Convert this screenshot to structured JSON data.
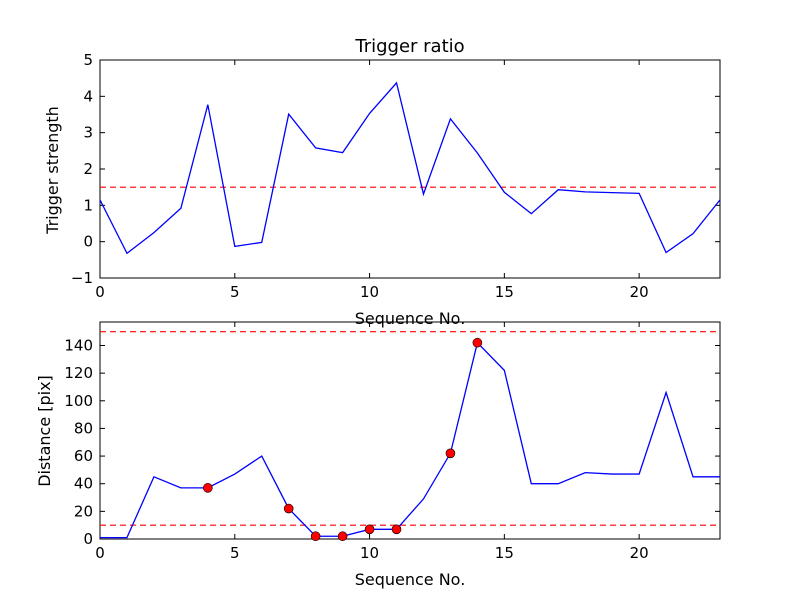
{
  "chart_data": [
    {
      "type": "line",
      "title": "Trigger ratio",
      "xlabel": "Sequence No.",
      "ylabel": "Trigger strength",
      "xlim": [
        0,
        23
      ],
      "ylim": [
        -1,
        5
      ],
      "xticks": [
        0,
        5,
        10,
        15,
        20
      ],
      "yticks": [
        -1,
        0,
        1,
        2,
        3,
        4,
        5
      ],
      "x": [
        0,
        1,
        2,
        3,
        4,
        5,
        6,
        7,
        8,
        9,
        10,
        11,
        12,
        13,
        14,
        15,
        16,
        17,
        18,
        19,
        20,
        21,
        22,
        23
      ],
      "series": [
        {
          "color": "#0000ff",
          "values": [
            1.15,
            -0.32,
            0.25,
            0.92,
            3.77,
            -0.13,
            -0.02,
            3.51,
            2.58,
            2.45,
            3.53,
            4.37,
            1.31,
            3.38,
            2.44,
            1.36,
            0.77,
            1.43,
            1.37,
            1.35,
            1.33,
            -0.3,
            0.22,
            1.15
          ]
        }
      ],
      "threshold_lines": [
        {
          "y": 1.5,
          "color": "#ff0000",
          "style": "dashed"
        }
      ],
      "grid": false
    },
    {
      "type": "line",
      "title": "",
      "xlabel": "Sequence No.",
      "ylabel": "Distance [pix]",
      "xlim": [
        0,
        23
      ],
      "ylim": [
        0,
        157
      ],
      "xticks": [
        0,
        5,
        10,
        15,
        20
      ],
      "yticks": [
        0,
        20,
        40,
        60,
        80,
        100,
        120,
        140
      ],
      "x": [
        0,
        1,
        2,
        3,
        4,
        5,
        6,
        7,
        8,
        9,
        10,
        11,
        12,
        13,
        14,
        15,
        16,
        17,
        18,
        19,
        20,
        21,
        22,
        23
      ],
      "series": [
        {
          "color": "#0000ff",
          "values": [
            1,
            1,
            45,
            37,
            37,
            47,
            60,
            22,
            2,
            2,
            7,
            7,
            29,
            62,
            142,
            122,
            40,
            40,
            48,
            47,
            47,
            106,
            45,
            45
          ]
        }
      ],
      "markers": {
        "color": "#ff0000",
        "points": [
          {
            "x": 4,
            "y": 37
          },
          {
            "x": 7,
            "y": 22
          },
          {
            "x": 8,
            "y": 2
          },
          {
            "x": 9,
            "y": 2
          },
          {
            "x": 10,
            "y": 7
          },
          {
            "x": 11,
            "y": 7
          },
          {
            "x": 13,
            "y": 62
          },
          {
            "x": 14,
            "y": 142
          }
        ]
      },
      "threshold_lines": [
        {
          "y": 10,
          "color": "#ff0000",
          "style": "dashed"
        },
        {
          "y": 150,
          "color": "#ff0000",
          "style": "dashed"
        }
      ],
      "grid": false
    }
  ]
}
